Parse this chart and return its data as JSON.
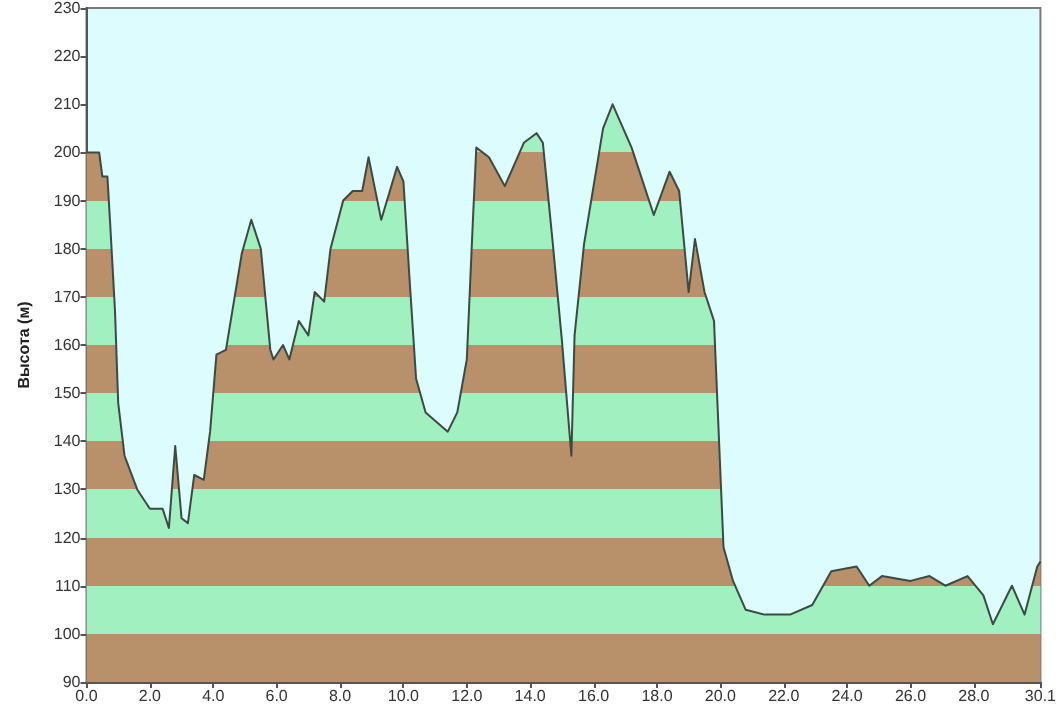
{
  "chart_data": {
    "type": "area",
    "ylabel": "Высота (м)",
    "x": [
      0,
      0.4,
      0.5,
      0.66,
      0.74,
      0.9,
      1.0,
      1.2,
      1.6,
      2.0,
      2.4,
      2.6,
      2.8,
      3.0,
      3.2,
      3.4,
      3.7,
      3.9,
      4.1,
      4.4,
      4.6,
      4.9,
      5.2,
      5.5,
      5.8,
      5.9,
      6.2,
      6.4,
      6.7,
      7.0,
      7.2,
      7.5,
      7.7,
      8.1,
      8.4,
      8.7,
      8.9,
      9.3,
      9.8,
      10.0,
      10.2,
      10.4,
      10.7,
      11.4,
      11.7,
      12.0,
      12.2,
      12.3,
      12.7,
      13.2,
      13.8,
      14.2,
      14.4,
      14.7,
      15.0,
      15.3,
      15.4,
      15.7,
      16.3,
      16.6,
      17.2,
      17.9,
      18.4,
      18.7,
      19.0,
      19.2,
      19.5,
      19.8,
      20.1,
      20.4,
      20.8,
      21.4,
      22.2,
      22.9,
      23.5,
      24.3,
      24.7,
      25.1,
      26.0,
      26.6,
      27.1,
      27.8,
      28.3,
      28.6,
      29.2,
      29.6,
      30.0,
      30.1
    ],
    "series": [
      {
        "color": "#3c4a42",
        "values": [
          200,
          200,
          195,
          195,
          186,
          167,
          148,
          137,
          130,
          126,
          126,
          122,
          139,
          124,
          123,
          133,
          132,
          142,
          158,
          159,
          167,
          179,
          186,
          180,
          159,
          157,
          160,
          157,
          165,
          162,
          171,
          169,
          180,
          190,
          192,
          192,
          199,
          186,
          197,
          194,
          173,
          153,
          146,
          142,
          146,
          157,
          187,
          201,
          199,
          193,
          202,
          204,
          202,
          182,
          161,
          137,
          162,
          181,
          205,
          210,
          201,
          187,
          196,
          192,
          171,
          182,
          171,
          165,
          118,
          111,
          105,
          104,
          104,
          106,
          113,
          114,
          110,
          112,
          111,
          112,
          110,
          112,
          108,
          102,
          110,
          104,
          114,
          115
        ]
      }
    ],
    "xlim": [
      0,
      30.1
    ],
    "xticks": [
      {
        "value": 0,
        "label": "0.0"
      },
      {
        "value": 2,
        "label": "2.0"
      },
      {
        "value": 4,
        "label": "4.0"
      },
      {
        "value": 6,
        "label": "6.0"
      },
      {
        "value": 8,
        "label": "8.0"
      },
      {
        "value": 10,
        "label": "10.0"
      },
      {
        "value": 12,
        "label": "12.0"
      },
      {
        "value": 14,
        "label": "14.0"
      },
      {
        "value": 16,
        "label": "16.0"
      },
      {
        "value": 18,
        "label": "18.0"
      },
      {
        "value": 20,
        "label": "20.0"
      },
      {
        "value": 22,
        "label": "22.0"
      },
      {
        "value": 24,
        "label": "24.0"
      },
      {
        "value": 26,
        "label": "26.0"
      },
      {
        "value": 28,
        "label": "28.0"
      },
      30.1
    ],
    "ylim": [
      90,
      230
    ],
    "yticks": [
      90,
      100,
      110,
      120,
      130,
      140,
      150,
      160,
      170,
      180,
      190,
      200,
      210,
      220,
      230
    ],
    "grid": false,
    "marker": "none",
    "line_style": "solid"
  }
}
